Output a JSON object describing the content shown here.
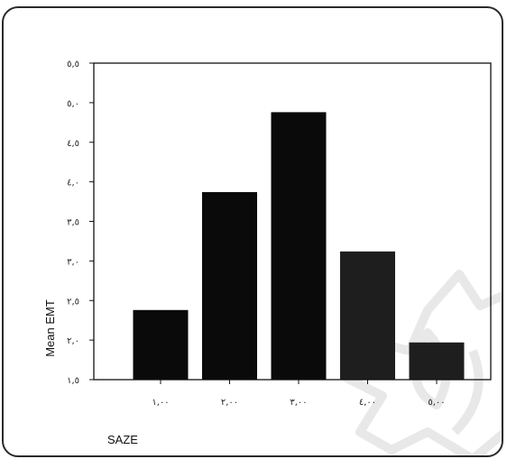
{
  "chart_data": {
    "type": "bar",
    "categories": [
      "١,٠٠",
      "٢,٠٠",
      "٣,٠٠",
      "٤,٠٠",
      "٥,٠٠"
    ],
    "values": [
      2.38,
      3.87,
      4.88,
      3.12,
      1.97
    ],
    "colors": [
      "#0a0a0a",
      "#0a0a0a",
      "#0a0a0a",
      "#1e1e1e",
      "#1e1e1e"
    ],
    "xlabel": "SAZE",
    "ylabel": "Mean EMT",
    "ylim": [
      1.5,
      5.5
    ],
    "yticks": [
      1.5,
      2.0,
      2.5,
      3.0,
      3.5,
      4.0,
      4.5,
      5.0,
      5.5
    ],
    "ytick_labels": [
      "١,٥",
      "٢,٠",
      "٢,٥",
      "٣,٠",
      "٣,٥",
      "٤,٠",
      "٤,٥",
      "٥,٠",
      "٥,٥"
    ],
    "grid": false
  }
}
